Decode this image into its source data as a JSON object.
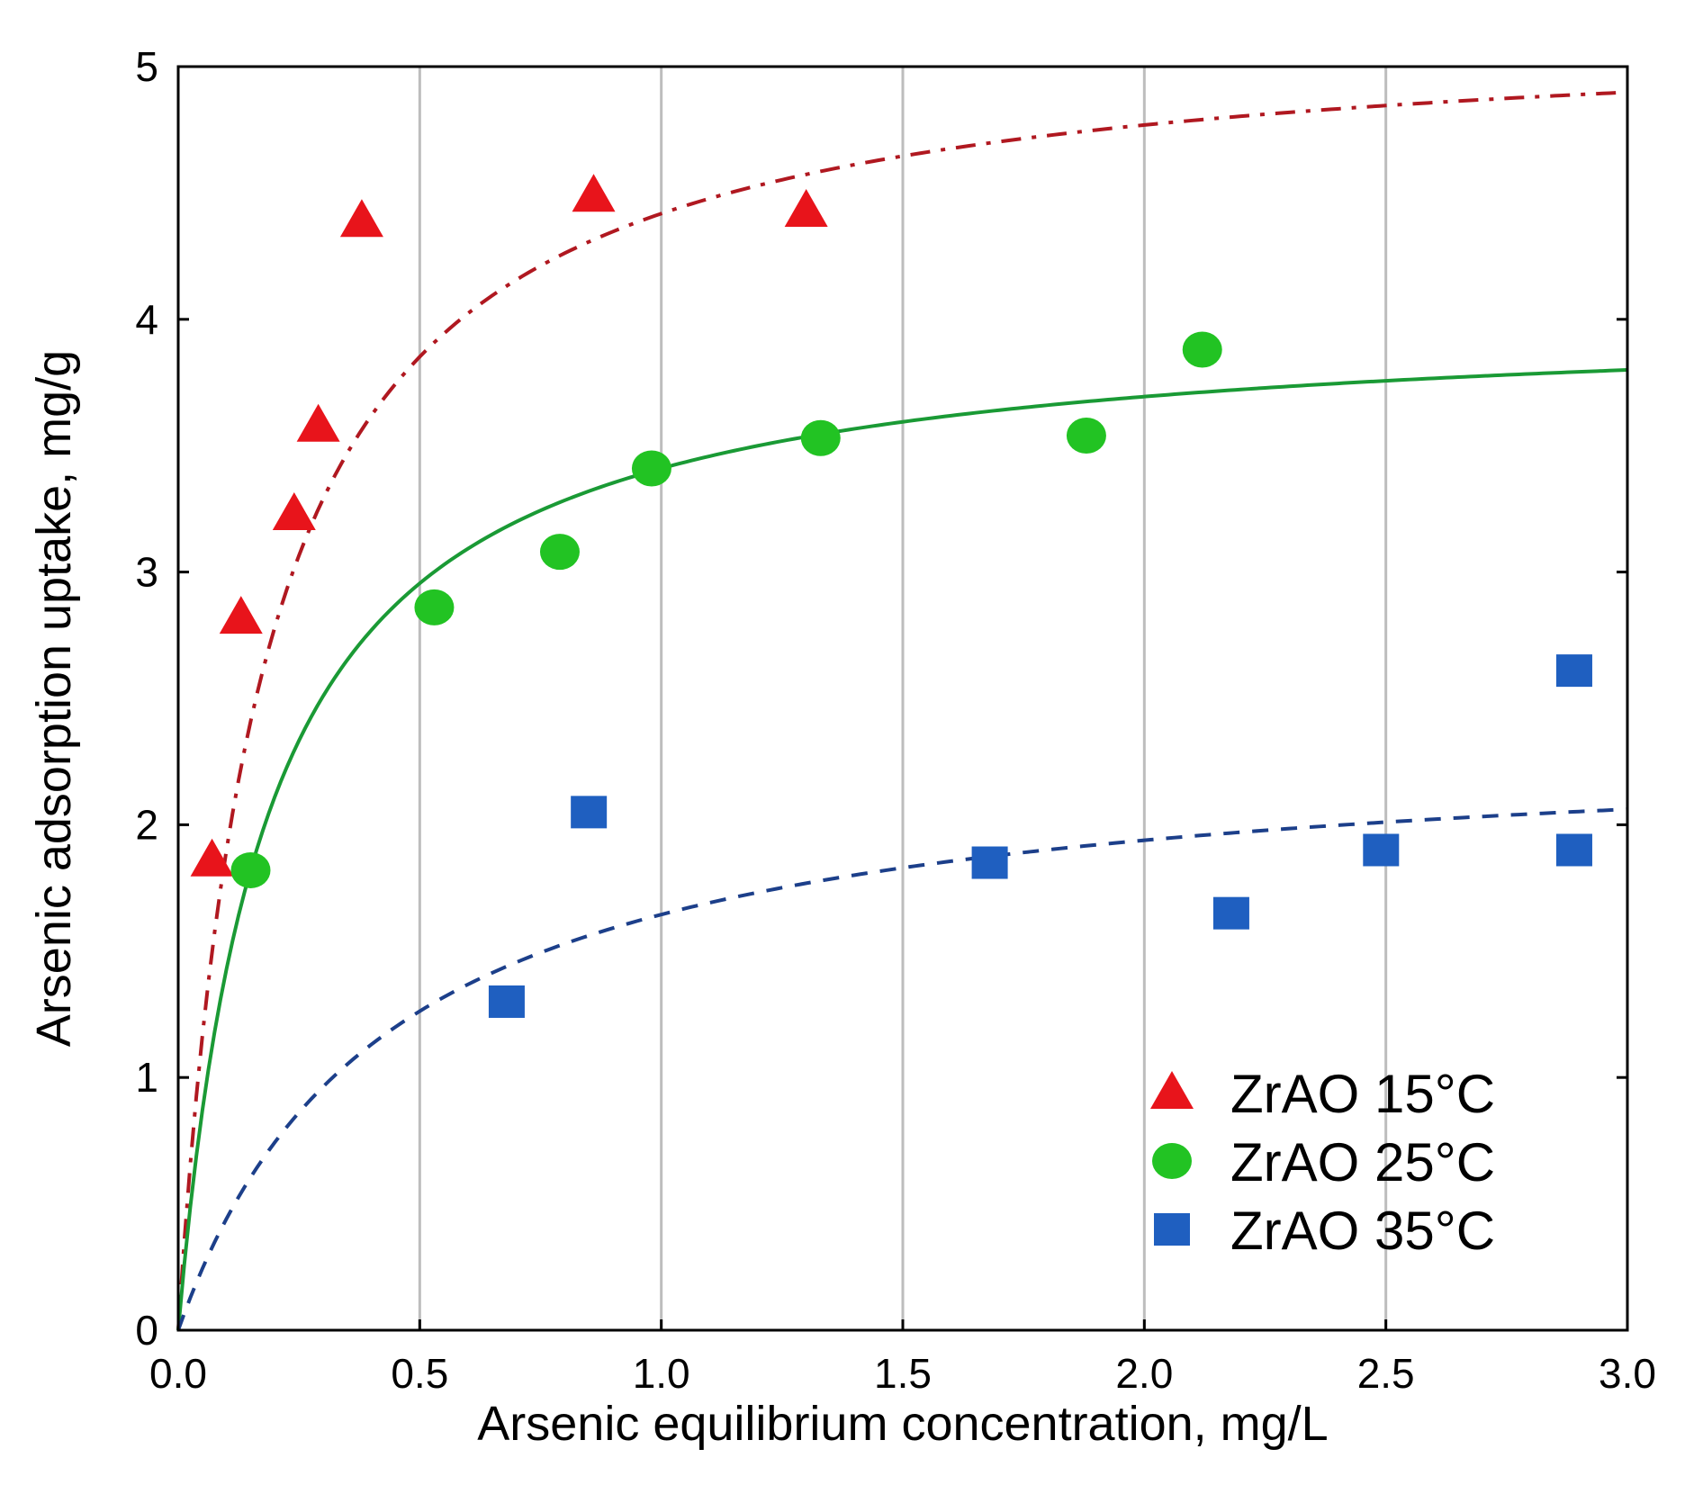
{
  "chart_data": {
    "type": "scatter",
    "title": "",
    "xlabel": "Arsenic equilibrium concentration, mg/L",
    "ylabel": "Arsenic adsorption uptake, mg/g",
    "xlim": [
      0,
      3
    ],
    "ylim": [
      0,
      5
    ],
    "x_ticks": [
      {
        "value": 0.0,
        "label": "0.0"
      },
      {
        "value": 0.5,
        "label": "0.5"
      },
      {
        "value": 1.0,
        "label": "1.0"
      },
      {
        "value": 1.5,
        "label": "1.5"
      },
      {
        "value": 2.0,
        "label": "2.0"
      },
      {
        "value": 2.5,
        "label": "2.5"
      },
      {
        "value": 3.0,
        "label": "3.0"
      }
    ],
    "y_ticks": [
      {
        "value": 0,
        "label": "0"
      },
      {
        "value": 1,
        "label": "1"
      },
      {
        "value": 2,
        "label": "2"
      },
      {
        "value": 3,
        "label": "3"
      },
      {
        "value": 4,
        "label": "4"
      },
      {
        "value": 5,
        "label": "5"
      }
    ],
    "grid": "vertical",
    "legend_position": "bottom-right",
    "series": [
      {
        "name": "ZrAO 15°C",
        "marker": "triangle",
        "color": "#e8141b",
        "points": [
          {
            "x": 0.07,
            "y": 1.86
          },
          {
            "x": 0.13,
            "y": 2.82
          },
          {
            "x": 0.24,
            "y": 3.23
          },
          {
            "x": 0.29,
            "y": 3.58
          },
          {
            "x": 0.38,
            "y": 4.39
          },
          {
            "x": 0.86,
            "y": 4.49
          },
          {
            "x": 1.3,
            "y": 4.43
          }
        ],
        "fit": {
          "model": "langmuir",
          "qmax": 5.18,
          "K": 5.8,
          "line_style": "dash-dot",
          "line_color": "#b01820"
        }
      },
      {
        "name": "ZrAO 25°C",
        "marker": "circle",
        "color": "#22c323",
        "points": [
          {
            "x": 0.15,
            "y": 1.82
          },
          {
            "x": 0.53,
            "y": 2.86
          },
          {
            "x": 0.79,
            "y": 3.08
          },
          {
            "x": 0.98,
            "y": 3.41
          },
          {
            "x": 1.33,
            "y": 3.53
          },
          {
            "x": 1.88,
            "y": 3.54
          },
          {
            "x": 2.12,
            "y": 3.88
          }
        ],
        "fit": {
          "model": "langmuir",
          "qmax": 4.03,
          "K": 5.5,
          "line_style": "solid",
          "line_color": "#1a9a35"
        }
      },
      {
        "name": "ZrAO 35°C",
        "marker": "square",
        "color": "#1f5fc0",
        "points": [
          {
            "x": 0.68,
            "y": 1.3
          },
          {
            "x": 0.85,
            "y": 2.05
          },
          {
            "x": 1.68,
            "y": 1.85
          },
          {
            "x": 2.18,
            "y": 1.65
          },
          {
            "x": 2.49,
            "y": 1.9
          },
          {
            "x": 2.89,
            "y": 1.9
          },
          {
            "x": 2.89,
            "y": 2.61
          }
        ],
        "fit": {
          "model": "langmuir",
          "qmax": 2.36,
          "K": 2.3,
          "line_style": "dashed",
          "line_color": "#1c3f8a"
        }
      }
    ]
  }
}
